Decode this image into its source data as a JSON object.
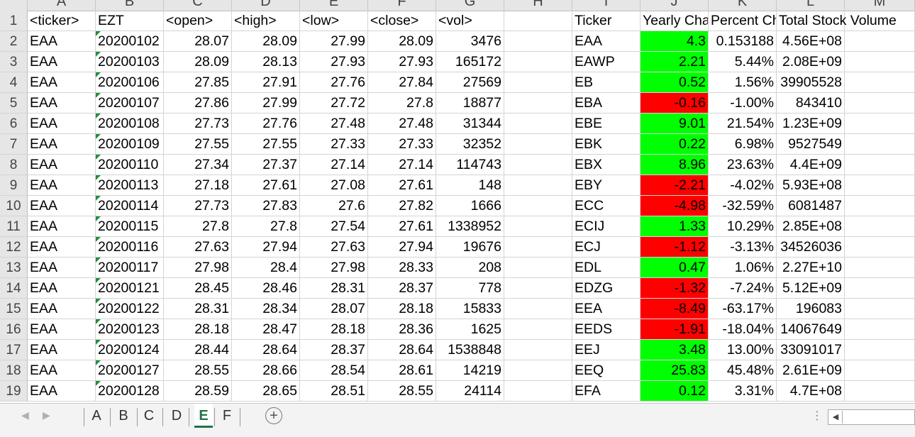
{
  "columns": [
    "A",
    "B",
    "C",
    "D",
    "E",
    "F",
    "G",
    "H",
    "I",
    "J",
    "K",
    "L",
    "M"
  ],
  "rows": [
    {
      "n": "1",
      "a": "<ticker>",
      "b": "EZT",
      "c": "<open>",
      "d": "<high>",
      "e": "<low>",
      "f": "<close>",
      "g": "<vol>",
      "i": "Ticker",
      "j": "Yearly Change",
      "k": "Percent Change",
      "l": "Total Stock Volume"
    },
    {
      "n": "2",
      "a": "EAA",
      "b": "20200102",
      "c": "28.07",
      "d": "28.09",
      "e": "27.99",
      "f": "28.09",
      "g": "3476",
      "i": "EAA",
      "j": "4.3",
      "k": "0.153188",
      "l": "4.56E+08",
      "color": "pos"
    },
    {
      "n": "3",
      "a": "EAA",
      "b": "20200103",
      "c": "28.09",
      "d": "28.13",
      "e": "27.93",
      "f": "27.93",
      "g": "165172",
      "i": "EAWP",
      "j": "2.21",
      "k": "5.44%",
      "l": "2.08E+09",
      "color": "pos"
    },
    {
      "n": "4",
      "a": "EAA",
      "b": "20200106",
      "c": "27.85",
      "d": "27.91",
      "e": "27.76",
      "f": "27.84",
      "g": "27569",
      "i": "EB",
      "j": "0.52",
      "k": "1.56%",
      "l": "39905528",
      "color": "pos"
    },
    {
      "n": "5",
      "a": "EAA",
      "b": "20200107",
      "c": "27.86",
      "d": "27.99",
      "e": "27.72",
      "f": "27.8",
      "g": "18877",
      "i": "EBA",
      "j": "-0.16",
      "k": "-1.00%",
      "l": "843410",
      "color": "neg"
    },
    {
      "n": "6",
      "a": "EAA",
      "b": "20200108",
      "c": "27.73",
      "d": "27.76",
      "e": "27.48",
      "f": "27.48",
      "g": "31344",
      "i": "EBE",
      "j": "9.01",
      "k": "21.54%",
      "l": "1.23E+09",
      "color": "pos"
    },
    {
      "n": "7",
      "a": "EAA",
      "b": "20200109",
      "c": "27.55",
      "d": "27.55",
      "e": "27.33",
      "f": "27.33",
      "g": "32352",
      "i": "EBK",
      "j": "0.22",
      "k": "6.98%",
      "l": "9527549",
      "color": "pos"
    },
    {
      "n": "8",
      "a": "EAA",
      "b": "20200110",
      "c": "27.34",
      "d": "27.37",
      "e": "27.14",
      "f": "27.14",
      "g": "114743",
      "i": "EBX",
      "j": "8.96",
      "k": "23.63%",
      "l": "4.4E+09",
      "color": "pos"
    },
    {
      "n": "9",
      "a": "EAA",
      "b": "20200113",
      "c": "27.18",
      "d": "27.61",
      "e": "27.08",
      "f": "27.61",
      "g": "148",
      "i": "EBY",
      "j": "-2.21",
      "k": "-4.02%",
      "l": "5.93E+08",
      "color": "neg"
    },
    {
      "n": "10",
      "a": "EAA",
      "b": "20200114",
      "c": "27.73",
      "d": "27.83",
      "e": "27.6",
      "f": "27.82",
      "g": "1666",
      "i": "ECC",
      "j": "-4.98",
      "k": "-32.59%",
      "l": "6081487",
      "color": "neg"
    },
    {
      "n": "11",
      "a": "EAA",
      "b": "20200115",
      "c": "27.8",
      "d": "27.8",
      "e": "27.54",
      "f": "27.61",
      "g": "1338952",
      "i": "ECIJ",
      "j": "1.33",
      "k": "10.29%",
      "l": "2.85E+08",
      "color": "pos"
    },
    {
      "n": "12",
      "a": "EAA",
      "b": "20200116",
      "c": "27.63",
      "d": "27.94",
      "e": "27.63",
      "f": "27.94",
      "g": "19676",
      "i": "ECJ",
      "j": "-1.12",
      "k": "-3.13%",
      "l": "34526036",
      "color": "neg"
    },
    {
      "n": "13",
      "a": "EAA",
      "b": "20200117",
      "c": "27.98",
      "d": "28.4",
      "e": "27.98",
      "f": "28.33",
      "g": "208",
      "i": "EDL",
      "j": "0.47",
      "k": "1.06%",
      "l": "2.27E+10",
      "color": "pos"
    },
    {
      "n": "14",
      "a": "EAA",
      "b": "20200121",
      "c": "28.45",
      "d": "28.46",
      "e": "28.31",
      "f": "28.37",
      "g": "778",
      "i": "EDZG",
      "j": "-1.32",
      "k": "-7.24%",
      "l": "5.12E+09",
      "color": "neg"
    },
    {
      "n": "15",
      "a": "EAA",
      "b": "20200122",
      "c": "28.31",
      "d": "28.34",
      "e": "28.07",
      "f": "28.18",
      "g": "15833",
      "i": "EEA",
      "j": "-8.49",
      "k": "-63.17%",
      "l": "196083",
      "color": "neg"
    },
    {
      "n": "16",
      "a": "EAA",
      "b": "20200123",
      "c": "28.18",
      "d": "28.47",
      "e": "28.18",
      "f": "28.36",
      "g": "1625",
      "i": "EEDS",
      "j": "-1.91",
      "k": "-18.04%",
      "l": "14067649",
      "color": "neg"
    },
    {
      "n": "17",
      "a": "EAA",
      "b": "20200124",
      "c": "28.44",
      "d": "28.64",
      "e": "28.37",
      "f": "28.64",
      "g": "1538848",
      "i": "EEJ",
      "j": "3.48",
      "k": "13.00%",
      "l": "33091017",
      "color": "pos"
    },
    {
      "n": "18",
      "a": "EAA",
      "b": "20200127",
      "c": "28.55",
      "d": "28.66",
      "e": "28.54",
      "f": "28.61",
      "g": "14219",
      "i": "EEQ",
      "j": "25.83",
      "k": "45.48%",
      "l": "2.61E+09",
      "color": "pos"
    },
    {
      "n": "19",
      "a": "EAA",
      "b": "20200128",
      "c": "28.59",
      "d": "28.65",
      "e": "28.51",
      "f": "28.55",
      "g": "24114",
      "i": "EFA",
      "j": "0.12",
      "k": "3.31%",
      "l": "4.7E+08",
      "color": "pos"
    }
  ],
  "sheet_tabs": [
    "A",
    "B",
    "C",
    "D",
    "E",
    "F"
  ],
  "active_tab": "E",
  "add_sheet_label": "+",
  "colors": {
    "positive": "#00ff00",
    "negative": "#ff0000",
    "accent": "#217346"
  }
}
